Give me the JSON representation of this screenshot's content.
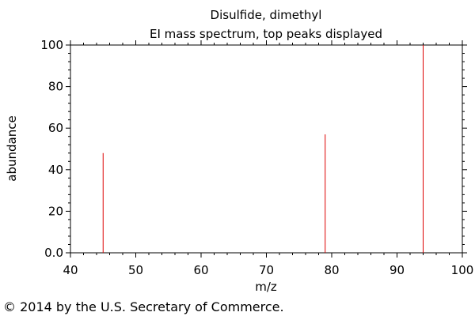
{
  "chart_data": {
    "type": "bar",
    "title": "Disulfide, dimethyl",
    "subtitle": "EI mass spectrum, top peaks displayed",
    "xlabel": "m/z",
    "ylabel": "abundance",
    "xlim": [
      40,
      100
    ],
    "ylim": [
      0,
      100
    ],
    "x_ticks": [
      "40",
      "50",
      "60",
      "70",
      "80",
      "90",
      "100"
    ],
    "y_ticks": [
      "0.0",
      "20",
      "40",
      "60",
      "80",
      "100"
    ],
    "peaks": [
      {
        "x": 45,
        "y": 48
      },
      {
        "x": 79,
        "y": 57
      },
      {
        "x": 94,
        "y": 100
      }
    ],
    "grid": false,
    "peak_color": "#dd0000"
  },
  "footer": {
    "copyright": "© 2014 by the U.S. Secretary of Commerce."
  }
}
